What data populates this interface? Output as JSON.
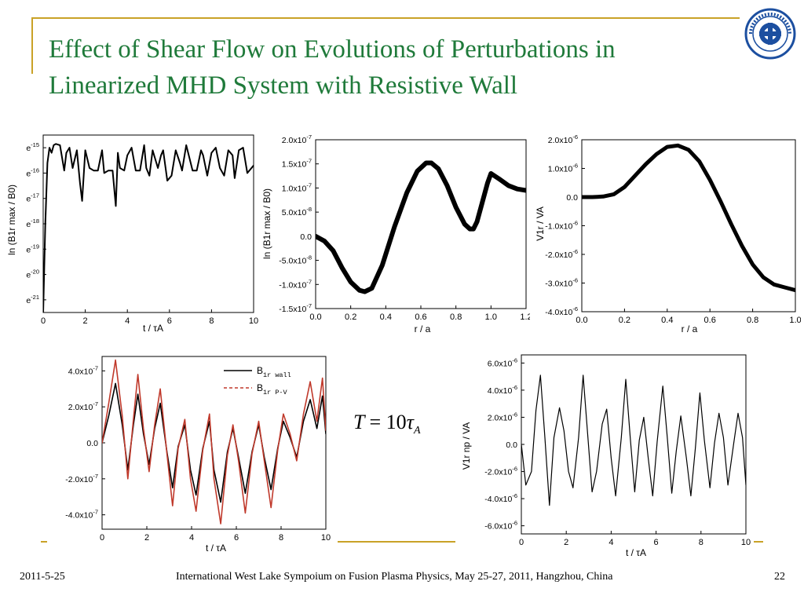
{
  "slide": {
    "title": "Effect of Shear Flow on Evolutions of Perturbations in Linearized MHD System with Resistive Wall",
    "formula": {
      "lhs": "T",
      "eq": "=",
      "coef": "10",
      "tau": "τ",
      "sub": "A"
    },
    "footer_date": "2011-5-25",
    "footer_center": "International West Lake Sympoium on Fusion Plasma Physics, May 25-27, 2011, Hangzhou, China",
    "page_number": "22",
    "colors": {
      "title": "#1f7a3a",
      "rule": "#c9a227",
      "logo": "#1c4fa0",
      "red_series": "#c0392b"
    }
  },
  "chart_data": [
    {
      "type": "line",
      "id": "chart-a",
      "xlabel": "t / τA",
      "ylabel": "ln (B1r max / B0)",
      "xlim": [
        0,
        10
      ],
      "xticks": [
        "0",
        "2",
        "4",
        "6",
        "8",
        "10"
      ],
      "ylim": [
        -21.5,
        -14.5
      ],
      "yticks": [
        "e-15",
        "e-16",
        "e-17",
        "e-18",
        "e-19",
        "e-20",
        "e-21"
      ],
      "ytick_values": [
        -15,
        -16,
        -17,
        -18,
        -19,
        -20,
        -21
      ],
      "series": [
        {
          "x": [
            0.0,
            0.1,
            0.2,
            0.3,
            0.4,
            0.5,
            0.6,
            0.8,
            1.0,
            1.1,
            1.25,
            1.4,
            1.6,
            1.75,
            1.85,
            2.0,
            2.2,
            2.4,
            2.6,
            2.8,
            2.9,
            3.1,
            3.3,
            3.45,
            3.55,
            3.65,
            3.85,
            4.0,
            4.2,
            4.4,
            4.6,
            4.8,
            4.9,
            5.05,
            5.2,
            5.45,
            5.6,
            5.7,
            5.9,
            6.1,
            6.3,
            6.5,
            6.6,
            6.8,
            7.1,
            7.3,
            7.5,
            7.6,
            7.8,
            8.0,
            8.2,
            8.4,
            8.6,
            8.8,
            9.0,
            9.1,
            9.3,
            9.5,
            9.7,
            9.9,
            10.0
          ],
          "y": [
            -21.5,
            -18.0,
            -15.6,
            -15.0,
            -15.2,
            -14.9,
            -14.85,
            -14.9,
            -15.9,
            -15.2,
            -15.0,
            -15.8,
            -15.1,
            -16.4,
            -17.1,
            -15.1,
            -15.8,
            -15.9,
            -15.9,
            -15.1,
            -16.0,
            -15.9,
            -15.9,
            -17.3,
            -15.2,
            -15.8,
            -15.9,
            -15.3,
            -15.0,
            -15.9,
            -15.9,
            -14.9,
            -15.8,
            -16.1,
            -15.1,
            -15.8,
            -15.3,
            -15.1,
            -16.3,
            -16.1,
            -15.1,
            -15.6,
            -15.9,
            -14.9,
            -15.9,
            -15.9,
            -15.1,
            -15.3,
            -16.1,
            -15.2,
            -15.0,
            -15.8,
            -16.1,
            -15.1,
            -15.3,
            -16.2,
            -15.1,
            -15.0,
            -16.0,
            -15.8,
            -15.7
          ]
        }
      ]
    },
    {
      "type": "line",
      "id": "chart-b",
      "xlabel": "r / a",
      "ylabel": "ln (B1r max / B0)",
      "xlim": [
        0,
        1.2
      ],
      "xticks": [
        "0.0",
        "0.2",
        "0.4",
        "0.6",
        "0.8",
        "1.0",
        "1.2"
      ],
      "ylim": [
        -1.5e-07,
        2e-07
      ],
      "yticks": [
        "2.0x10-7",
        "1.5x10-7",
        "1.0x10-7",
        "5.0x10-8",
        "0.0",
        "-5.0x10-8",
        "-1.0x10-7",
        "-1.5x10-7"
      ],
      "ytick_values": [
        2e-07,
        1.5e-07,
        1e-07,
        5e-08,
        0,
        -5e-08,
        -1e-07,
        -1.5e-07
      ],
      "series": [
        {
          "x": [
            0.0,
            0.05,
            0.1,
            0.15,
            0.2,
            0.25,
            0.28,
            0.32,
            0.38,
            0.45,
            0.52,
            0.58,
            0.63,
            0.66,
            0.7,
            0.75,
            0.8,
            0.85,
            0.88,
            0.9,
            0.92,
            0.95,
            0.98,
            1.0,
            1.05,
            1.1,
            1.15,
            1.2
          ],
          "y": [
            0.0,
            -1e-08,
            -3e-08,
            -6.5e-08,
            -9.5e-08,
            -1.12e-07,
            -1.15e-07,
            -1.08e-07,
            -6e-08,
            2e-08,
            9e-08,
            1.35e-07,
            1.52e-07,
            1.52e-07,
            1.4e-07,
            1.05e-07,
            6e-08,
            2.5e-08,
            1.5e-08,
            1.5e-08,
            3e-08,
            7e-08,
            1.1e-07,
            1.3e-07,
            1.18e-07,
            1.05e-07,
            9.8e-08,
            9.5e-08
          ]
        }
      ]
    },
    {
      "type": "line",
      "id": "chart-c",
      "xlabel": "r / a",
      "ylabel": "V1r / VA",
      "xlim": [
        0,
        1.0
      ],
      "xticks": [
        "0.0",
        "0.2",
        "0.4",
        "0.6",
        "0.8",
        "1.0"
      ],
      "ylim": [
        -4e-06,
        2e-06
      ],
      "yticks": [
        "2.0x10-6",
        "1.0x10-6",
        "0.0",
        "-1.0x10-6",
        "-2.0x10-6",
        "-3.0x10-6",
        "-4.0x10-6"
      ],
      "ytick_values": [
        2e-06,
        1e-06,
        0,
        -1e-06,
        -2e-06,
        -3e-06,
        -4e-06
      ],
      "series": [
        {
          "x": [
            0.0,
            0.05,
            0.1,
            0.15,
            0.2,
            0.25,
            0.3,
            0.35,
            0.4,
            0.45,
            0.5,
            0.55,
            0.6,
            0.65,
            0.7,
            0.75,
            0.8,
            0.85,
            0.9,
            0.95,
            1.0
          ],
          "y": [
            0.0,
            0.0,
            2e-08,
            1e-07,
            3.5e-07,
            7.5e-07,
            1.15e-06,
            1.5e-06,
            1.75e-06,
            1.8e-06,
            1.65e-06,
            1.25e-06,
            6e-07,
            -1.5e-07,
            -9.5e-07,
            -1.7e-06,
            -2.35e-06,
            -2.8e-06,
            -3.05e-06,
            -3.15e-06,
            -3.25e-06
          ]
        }
      ]
    },
    {
      "type": "line",
      "id": "chart-d",
      "xlabel": "t / τA",
      "ylabel": "",
      "xlim": [
        0,
        10
      ],
      "xticks": [
        "0",
        "2",
        "4",
        "6",
        "8",
        "10"
      ],
      "ylim": [
        -4.8e-07,
        4.8e-07
      ],
      "yticks": [
        "4.0x10-7",
        "2.0x10-7",
        "0.0",
        "-2.0x10-7",
        "-4.0x10-7"
      ],
      "ytick_values": [
        4e-07,
        2e-07,
        0,
        -2e-07,
        -4e-07
      ],
      "legend": {
        "position": "top-right"
      },
      "series": [
        {
          "name": "B1r wall",
          "label_main": "B",
          "label_sub": "1r wall",
          "color": "#000000",
          "dash": "solid",
          "x": [
            0,
            0.3,
            0.6,
            0.9,
            1.15,
            1.4,
            1.6,
            1.85,
            2.1,
            2.35,
            2.6,
            2.9,
            3.15,
            3.4,
            3.7,
            3.95,
            4.2,
            4.5,
            4.8,
            5.0,
            5.3,
            5.6,
            5.85,
            6.1,
            6.4,
            6.7,
            7.0,
            7.25,
            7.55,
            7.85,
            8.1,
            8.4,
            8.7,
            9.0,
            9.3,
            9.6,
            9.85,
            10
          ],
          "y": [
            0,
            1.5e-07,
            3.3e-07,
            1e-07,
            -1.5e-07,
            1e-07,
            2.7e-07,
            5e-08,
            -1.2e-07,
            8e-08,
            2.2e-07,
            -5e-08,
            -2.5e-07,
            -2e-08,
            1e-07,
            -1.5e-07,
            -2.9e-07,
            -3e-08,
            1.2e-07,
            -1.5e-07,
            -3.3e-07,
            -5e-08,
            8e-08,
            -8e-08,
            -2.8e-07,
            -5e-08,
            1e-07,
            -8e-08,
            -2.6e-07,
            -3e-08,
            1.2e-07,
            3e-08,
            -8e-08,
            1.2e-07,
            2.4e-07,
            8e-08,
            2.6e-07,
            5e-08
          ]
        },
        {
          "name": "B1r P-V",
          "label_main": "B",
          "label_sub": "1r P-V",
          "color": "#c0392b",
          "dash": "dashed",
          "x": [
            0,
            0.3,
            0.6,
            0.9,
            1.15,
            1.4,
            1.6,
            1.85,
            2.1,
            2.35,
            2.6,
            2.9,
            3.15,
            3.4,
            3.7,
            3.95,
            4.2,
            4.5,
            4.8,
            5.0,
            5.3,
            5.6,
            5.85,
            6.1,
            6.4,
            6.7,
            7.0,
            7.25,
            7.55,
            7.85,
            8.1,
            8.4,
            8.7,
            9.0,
            9.3,
            9.6,
            9.85,
            10
          ],
          "y": [
            0,
            2.2e-07,
            4.6e-07,
            1.5e-07,
            -2e-07,
            1.3e-07,
            3.8e-07,
            8e-08,
            -1.6e-07,
            1e-07,
            3e-07,
            -6e-08,
            -3.5e-07,
            -3e-08,
            1.3e-07,
            -2e-07,
            -3.8e-07,
            -4e-08,
            1.6e-07,
            -2e-07,
            -4.5e-07,
            -7e-08,
            1e-07,
            -1e-07,
            -3.9e-07,
            -6e-08,
            1.2e-07,
            -1e-07,
            -3.6e-07,
            -4e-08,
            1.6e-07,
            5e-08,
            -1e-07,
            1.6e-07,
            3.4e-07,
            1.2e-07,
            3.6e-07,
            7e-08
          ]
        }
      ]
    },
    {
      "type": "line",
      "id": "chart-e",
      "xlabel": "t / τA",
      "ylabel": "V1r np / VA",
      "xlim": [
        0,
        10
      ],
      "xticks": [
        "0",
        "2",
        "4",
        "6",
        "8",
        "10"
      ],
      "ylim": [
        -6.6e-06,
        6.6e-06
      ],
      "yticks": [
        "6.0x10-6",
        "4.0x10-6",
        "2.0x10-6",
        "0.0",
        "-2.0x10-6",
        "-4.0x10-6",
        "-6.0x10-6"
      ],
      "ytick_values": [
        6e-06,
        4e-06,
        2e-06,
        0,
        -2e-06,
        -4e-06,
        -6e-06
      ],
      "series": [
        {
          "x": [
            0,
            0.2,
            0.45,
            0.65,
            0.85,
            1.05,
            1.25,
            1.45,
            1.7,
            1.9,
            2.1,
            2.3,
            2.55,
            2.75,
            2.95,
            3.15,
            3.35,
            3.6,
            3.8,
            4.0,
            4.2,
            4.45,
            4.65,
            4.85,
            5.05,
            5.25,
            5.45,
            5.65,
            5.85,
            6.05,
            6.3,
            6.5,
            6.7,
            6.9,
            7.1,
            7.35,
            7.55,
            7.75,
            7.95,
            8.15,
            8.4,
            8.6,
            8.8,
            9.0,
            9.2,
            9.45,
            9.65,
            9.85,
            10
          ],
          "y": [
            0,
            -3e-06,
            -2e-06,
            2.5e-06,
            5.1e-06,
            5e-07,
            -4.5e-06,
            5e-07,
            2.7e-06,
            1e-06,
            -2e-06,
            -3.2e-06,
            5e-07,
            5.1e-06,
            8e-07,
            -3.5e-06,
            -2e-06,
            1.5e-06,
            2.6e-06,
            -1e-06,
            -3.8e-06,
            5e-07,
            4.8e-06,
            5e-07,
            -3.5e-06,
            3e-07,
            2e-06,
            -1e-06,
            -3.8e-06,
            2e-07,
            4.3e-06,
            5e-07,
            -3.6e-06,
            -5e-07,
            2.1e-06,
            -1e-06,
            -3.8e-06,
            -3e-07,
            3.8e-06,
            3e-07,
            -3.2e-06,
            1e-07,
            2.3e-06,
            5e-07,
            -3e-06,
            0.0,
            2.3e-06,
            5e-07,
            -3e-06
          ]
        }
      ]
    }
  ]
}
